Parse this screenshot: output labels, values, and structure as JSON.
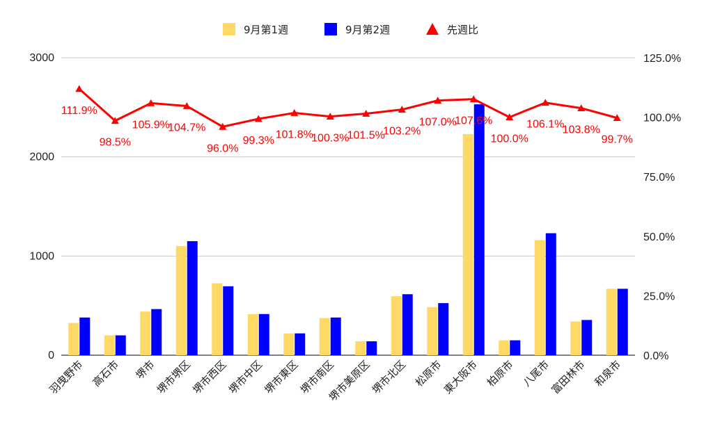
{
  "chart_data": {
    "type": "bar",
    "categories": [
      "羽曳野市",
      "高石市",
      "堺市",
      "堺市堺区",
      "堺市西区",
      "堺市中区",
      "堺市東区",
      "堺市南区",
      "堺市美原区",
      "堺市北区",
      "松原市",
      "東大阪市",
      "柏原市",
      "八尾市",
      "富田林市",
      "和泉市"
    ],
    "series": [
      {
        "name": "9月第1週",
        "kind": "bar",
        "axis": "left",
        "color": "#ffd966",
        "values": [
          325,
          200,
          440,
          1100,
          725,
          415,
          220,
          375,
          140,
          595,
          485,
          2230,
          150,
          1160,
          340,
          670
        ]
      },
      {
        "name": "9月第2週",
        "kind": "bar",
        "axis": "left",
        "color": "#0000ff",
        "values": [
          380,
          200,
          465,
          1150,
          695,
          415,
          220,
          380,
          140,
          615,
          525,
          2530,
          150,
          1230,
          355,
          670
        ]
      },
      {
        "name": "先週比",
        "kind": "line",
        "axis": "right",
        "color": "#ff0000",
        "values": [
          111.9,
          98.5,
          105.9,
          104.7,
          96.0,
          99.3,
          101.8,
          100.3,
          101.5,
          103.2,
          107.0,
          107.6,
          100.0,
          106.1,
          103.8,
          99.7
        ],
        "labels": [
          "111.9%",
          "98.5%",
          "105.9%",
          "104.7%",
          "96.0%",
          "99.3%",
          "101.8%",
          "100.3%",
          "101.5%",
          "103.2%",
          "107.0%",
          "107.6%",
          "100.0%",
          "106.1%",
          "103.8%",
          "99.7%"
        ]
      }
    ],
    "y_left": {
      "ticks": [
        0,
        1000,
        2000,
        3000
      ],
      "tick_labels": [
        "0",
        "1000",
        "2000",
        "3000"
      ],
      "range": [
        0,
        3000
      ]
    },
    "y_right": {
      "ticks": [
        0,
        25,
        50,
        75,
        100,
        125
      ],
      "tick_labels": [
        "0.0%",
        "25.0%",
        "50.0%",
        "75.0%",
        "100.0%",
        "125.0%"
      ],
      "range": [
        0,
        125
      ]
    },
    "grid": true,
    "legend_position": "top-center",
    "title": "",
    "xlabel": "",
    "ylabel": ""
  }
}
